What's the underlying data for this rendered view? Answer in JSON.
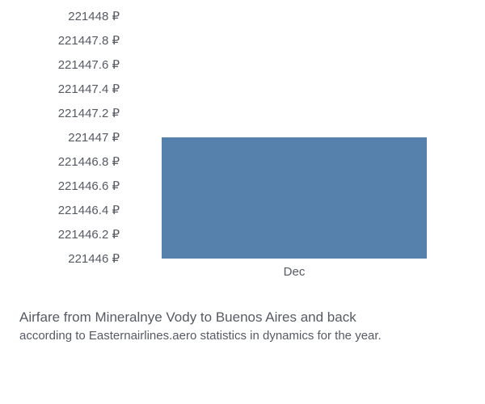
{
  "chart": {
    "type": "bar",
    "background_color": "#ffffff",
    "text_color": "#555a63",
    "tick_fontsize": 15,
    "y_axis": {
      "min": 221446,
      "max": 221448,
      "tick_step": 0.2,
      "ticks": [
        "221448 ₽",
        "221447.8 ₽",
        "221447.6 ₽",
        "221447.4 ₽",
        "221447.2 ₽",
        "221447 ₽",
        "221446.8 ₽",
        "221446.6 ₽",
        "221446.4 ₽",
        "221446.2 ₽",
        "221446 ₽"
      ]
    },
    "x_axis": {
      "categories": [
        "Dec"
      ]
    },
    "series": [
      {
        "category": "Dec",
        "value": 221447,
        "color": "#5681ad",
        "bar_width_fraction": 0.78
      }
    ]
  },
  "caption": {
    "line1": "Airfare from Mineralnye Vody to Buenos Aires and back",
    "line2": "according to Easternairlines.aero statistics in dynamics for the year.",
    "line1_fontsize": 17,
    "line2_fontsize": 15
  }
}
